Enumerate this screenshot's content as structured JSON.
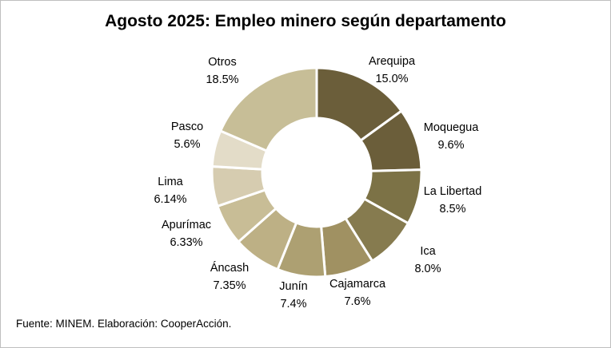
{
  "chart_data": {
    "type": "pie",
    "title": "Agosto 2025: Empleo minero según departamento",
    "source": "Fuente: MINEM. Elaboración: CooperAcción.",
    "slices": [
      {
        "label": "Arequipa",
        "value_label": "15.0%",
        "value": 15.0,
        "color": "#6b5e3a"
      },
      {
        "label": "Moquegua",
        "value_label": "9.6%",
        "value": 9.6,
        "color": "#6b5e3a"
      },
      {
        "label": "La Libertad",
        "value_label": "8.5%",
        "value": 8.5,
        "color": "#7c7246"
      },
      {
        "label": "Ica",
        "value_label": "8.0%",
        "value": 8.0,
        "color": "#867b4f"
      },
      {
        "label": "Cajamarca",
        "value_label": "7.6%",
        "value": 7.6,
        "color": "#a09162"
      },
      {
        "label": "Junín",
        "value_label": "7.4%",
        "value": 7.4,
        "color": "#ada072"
      },
      {
        "label": "Áncash",
        "value_label": "7.35%",
        "value": 7.35,
        "color": "#bdb085"
      },
      {
        "label": "Apurímac",
        "value_label": "6.33%",
        "value": 6.33,
        "color": "#c8bd96"
      },
      {
        "label": "Lima",
        "value_label": "6.14%",
        "value": 6.14,
        "color": "#d6ccb0"
      },
      {
        "label": "Pasco",
        "value_label": "5.6%",
        "value": 5.6,
        "color": "#e3dcc8"
      },
      {
        "label": "Otros",
        "value_label": "18.5%",
        "value": 18.5,
        "color": "#c7be97"
      }
    ]
  }
}
